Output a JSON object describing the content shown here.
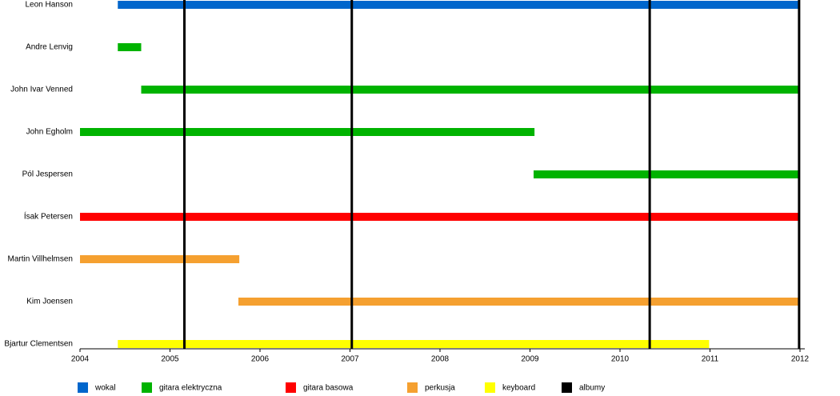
{
  "chart_data": {
    "type": "timeline",
    "categories": [
      "Leon Hanson",
      "Andre Lenvig",
      "John Ivar Venned",
      "John Egholm",
      "Pól Jespersen",
      "Ísak Petersen",
      "Martin Villhelmsen",
      "Kim Joensen",
      "Bjartur Clementsen"
    ],
    "xlim": [
      2004,
      2012
    ],
    "xticks": [
      2004,
      2005,
      2006,
      2007,
      2008,
      2009,
      2010,
      2011,
      2012
    ],
    "series": [
      {
        "name": "wokal",
        "color": "#0066cc",
        "values": [
          [
            2004.42,
            2012
          ],
          null,
          null,
          null,
          null,
          null,
          null,
          null,
          null
        ]
      },
      {
        "name": "gitara elektryczna",
        "color": "#00b300",
        "values": [
          null,
          [
            2004.42,
            2004.68
          ],
          [
            2004.68,
            2012
          ],
          [
            2004,
            2009.05
          ],
          [
            2009.04,
            2012
          ],
          null,
          null,
          null,
          null
        ]
      },
      {
        "name": "gitara basowa",
        "color": "#ff0000",
        "values": [
          null,
          null,
          null,
          null,
          null,
          [
            2004,
            2012
          ],
          null,
          null,
          null
        ]
      },
      {
        "name": "perkusja",
        "color": "#f5a030",
        "values": [
          null,
          null,
          null,
          null,
          null,
          null,
          [
            2004,
            2005.77
          ],
          [
            2005.76,
            2012
          ],
          null
        ]
      },
      {
        "name": "keyboard",
        "color": "#ffff00",
        "values": [
          null,
          null,
          null,
          null,
          null,
          null,
          null,
          null,
          [
            2004.42,
            2010.99
          ]
        ]
      },
      {
        "name": "albumy",
        "color": "#000000",
        "x": [
          2005.16,
          2007.02,
          2010.33,
          2011.99
        ]
      }
    ]
  }
}
